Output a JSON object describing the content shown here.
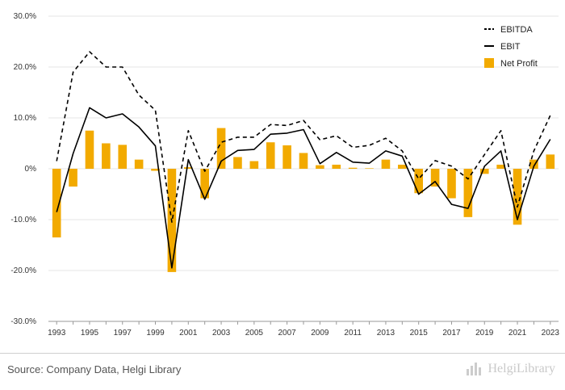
{
  "chart_data": {
    "type": "bar+line",
    "x": [
      1993,
      1994,
      1995,
      1996,
      1997,
      1998,
      1999,
      2000,
      2001,
      2002,
      2003,
      2004,
      2005,
      2006,
      2007,
      2008,
      2009,
      2010,
      2011,
      2012,
      2013,
      2014,
      2015,
      2016,
      2017,
      2018,
      2019,
      2020,
      2021,
      2022,
      2023
    ],
    "x_tick_labels": [
      "1993",
      "1995",
      "1997",
      "1999",
      "2001",
      "2003",
      "2005",
      "2007",
      "2009",
      "2011",
      "2013",
      "2015",
      "2017",
      "2019",
      "2021",
      "2023"
    ],
    "y_tick_labels": [
      "30.0%",
      "20.0%",
      "10.0%",
      "0%",
      "-10.0%",
      "-20.0%",
      "-30.0%"
    ],
    "ylim": [
      -30,
      30
    ],
    "grid": true,
    "legend_position": "top-right",
    "series": [
      {
        "name": "EBITDA",
        "kind": "line",
        "style": "dashed",
        "color": "#000000",
        "values": [
          1.5,
          19.0,
          23.0,
          20.0,
          20.0,
          14.5,
          11.5,
          -10.5,
          7.5,
          -0.5,
          5.2,
          6.2,
          6.2,
          8.7,
          8.5,
          9.5,
          5.7,
          6.5,
          4.2,
          4.6,
          6.0,
          3.5,
          -2.0,
          1.6,
          0.5,
          -2.0,
          2.8,
          7.5,
          -7.5,
          3.5,
          10.5
        ]
      },
      {
        "name": "EBIT",
        "kind": "line",
        "style": "solid",
        "color": "#000000",
        "values": [
          -8.5,
          3.0,
          12.0,
          10.0,
          10.8,
          8.2,
          4.5,
          -19.5,
          1.8,
          -6.0,
          1.5,
          3.6,
          3.8,
          6.8,
          7.0,
          7.7,
          1.0,
          3.2,
          1.3,
          1.1,
          3.5,
          2.5,
          -5.0,
          -2.5,
          -7.0,
          -7.8,
          0.5,
          3.5,
          -10.0,
          0.5,
          5.8
        ]
      },
      {
        "name": "Net Profit",
        "kind": "bar",
        "color": "#f2aa00",
        "values": [
          -13.5,
          -3.5,
          7.5,
          5.0,
          4.7,
          1.8,
          -0.4,
          -20.3,
          0.3,
          -5.8,
          8.0,
          2.3,
          1.5,
          5.2,
          4.6,
          3.1,
          0.7,
          0.8,
          0.2,
          0.1,
          1.8,
          0.8,
          -4.8,
          -3.5,
          -5.8,
          -9.5,
          -1.0,
          0.8,
          -11.0,
          1.8,
          2.8
        ]
      }
    ]
  },
  "footer": {
    "source": "Source: Company Data, Helgi Library",
    "brand": "HelgiLibrary"
  }
}
